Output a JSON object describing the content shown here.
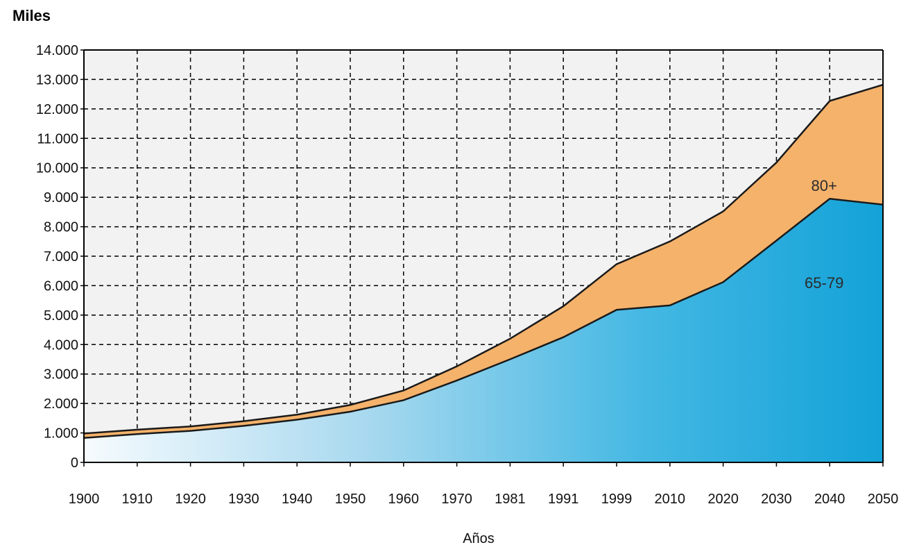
{
  "chart_data": {
    "type": "area",
    "stacked": true,
    "ylabel": "Miles",
    "xlabel": "Años",
    "categories": [
      "1900",
      "1910",
      "1920",
      "1930",
      "1940",
      "1950",
      "1960",
      "1970",
      "1981",
      "1991",
      "1999",
      "2010",
      "2020",
      "2030",
      "2040",
      "2050"
    ],
    "ylim": [
      0,
      14000
    ],
    "yticks": [
      0,
      1000,
      2000,
      3000,
      4000,
      5000,
      6000,
      7000,
      8000,
      9000,
      10000,
      11000,
      12000,
      13000,
      14000
    ],
    "ytick_labels": [
      "0",
      "1.000",
      "2.000",
      "3.000",
      "4.000",
      "5.000",
      "6.000",
      "7.000",
      "8.000",
      "9.000",
      "10.000",
      "11.000",
      "12.000",
      "13.000",
      "14.000"
    ],
    "grid": true,
    "series": [
      {
        "name": "65-79",
        "color": "#1aa3d8",
        "values": [
          830,
          960,
          1070,
          1240,
          1450,
          1720,
          2110,
          2780,
          3500,
          4250,
          5180,
          5330,
          6120,
          7530,
          8950,
          8750
        ]
      },
      {
        "name": "80+",
        "color": "#f5b26b",
        "values": [
          150,
          150,
          150,
          160,
          170,
          230,
          330,
          480,
          700,
          1050,
          1550,
          2170,
          2400,
          2650,
          3320,
          4070
        ]
      }
    ],
    "annotations": [
      {
        "text": "80+",
        "x": "2040",
        "y": 9400
      },
      {
        "text": "65-79",
        "x": "2040",
        "y": 6100
      }
    ]
  }
}
